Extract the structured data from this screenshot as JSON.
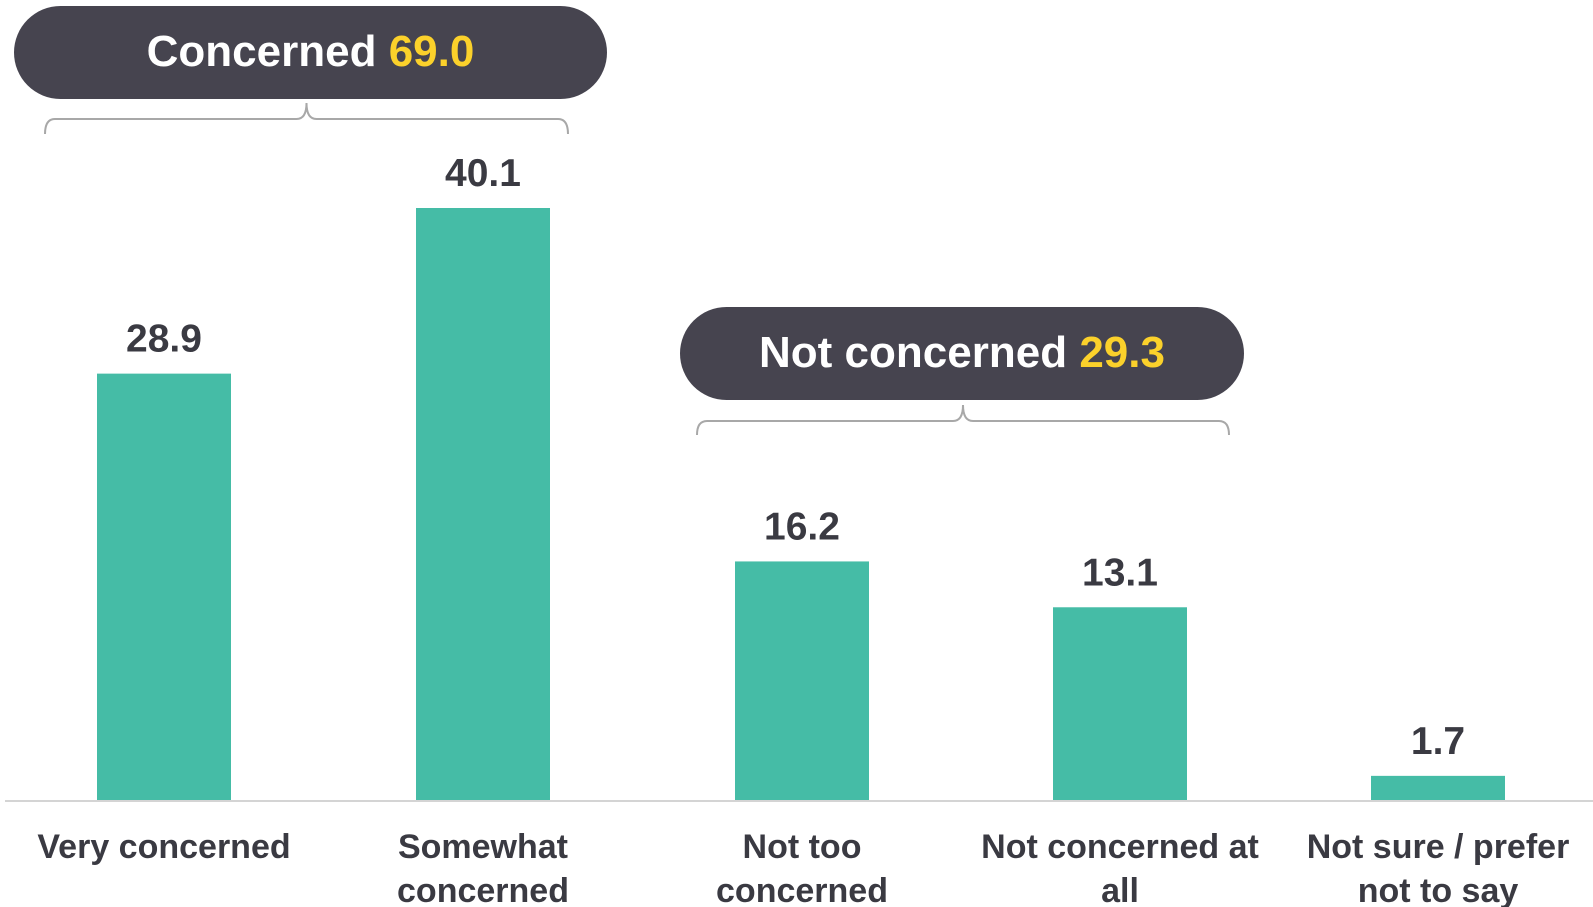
{
  "colors": {
    "bar": "#45bca6",
    "pill_bg": "#46444f",
    "pill_label": "#ffffff",
    "pill_value": "#fbd12b",
    "text": "#3a3a42",
    "axis": "#d4d4d4",
    "bracket": "#a8a8a8"
  },
  "chart_data": {
    "type": "bar",
    "categories": [
      [
        "Very concerned"
      ],
      [
        "Somewhat",
        "concerned"
      ],
      [
        "Not too",
        "concerned"
      ],
      [
        "Not concerned at",
        "all"
      ],
      [
        "Not sure / prefer",
        "not to say"
      ]
    ],
    "values": [
      28.9,
      40.1,
      16.2,
      13.1,
      1.7
    ],
    "value_labels": [
      "28.9",
      "40.1",
      "16.2",
      "13.1",
      "1.7"
    ],
    "title": "",
    "xlabel": "",
    "ylabel": "",
    "ylim": [
      0,
      40.1
    ],
    "grid": false,
    "groups": [
      {
        "label": "Concerned",
        "value": "69.0",
        "from": 0,
        "to": 1
      },
      {
        "label": "Not concerned",
        "value": "29.3",
        "from": 2,
        "to": 3
      }
    ]
  }
}
